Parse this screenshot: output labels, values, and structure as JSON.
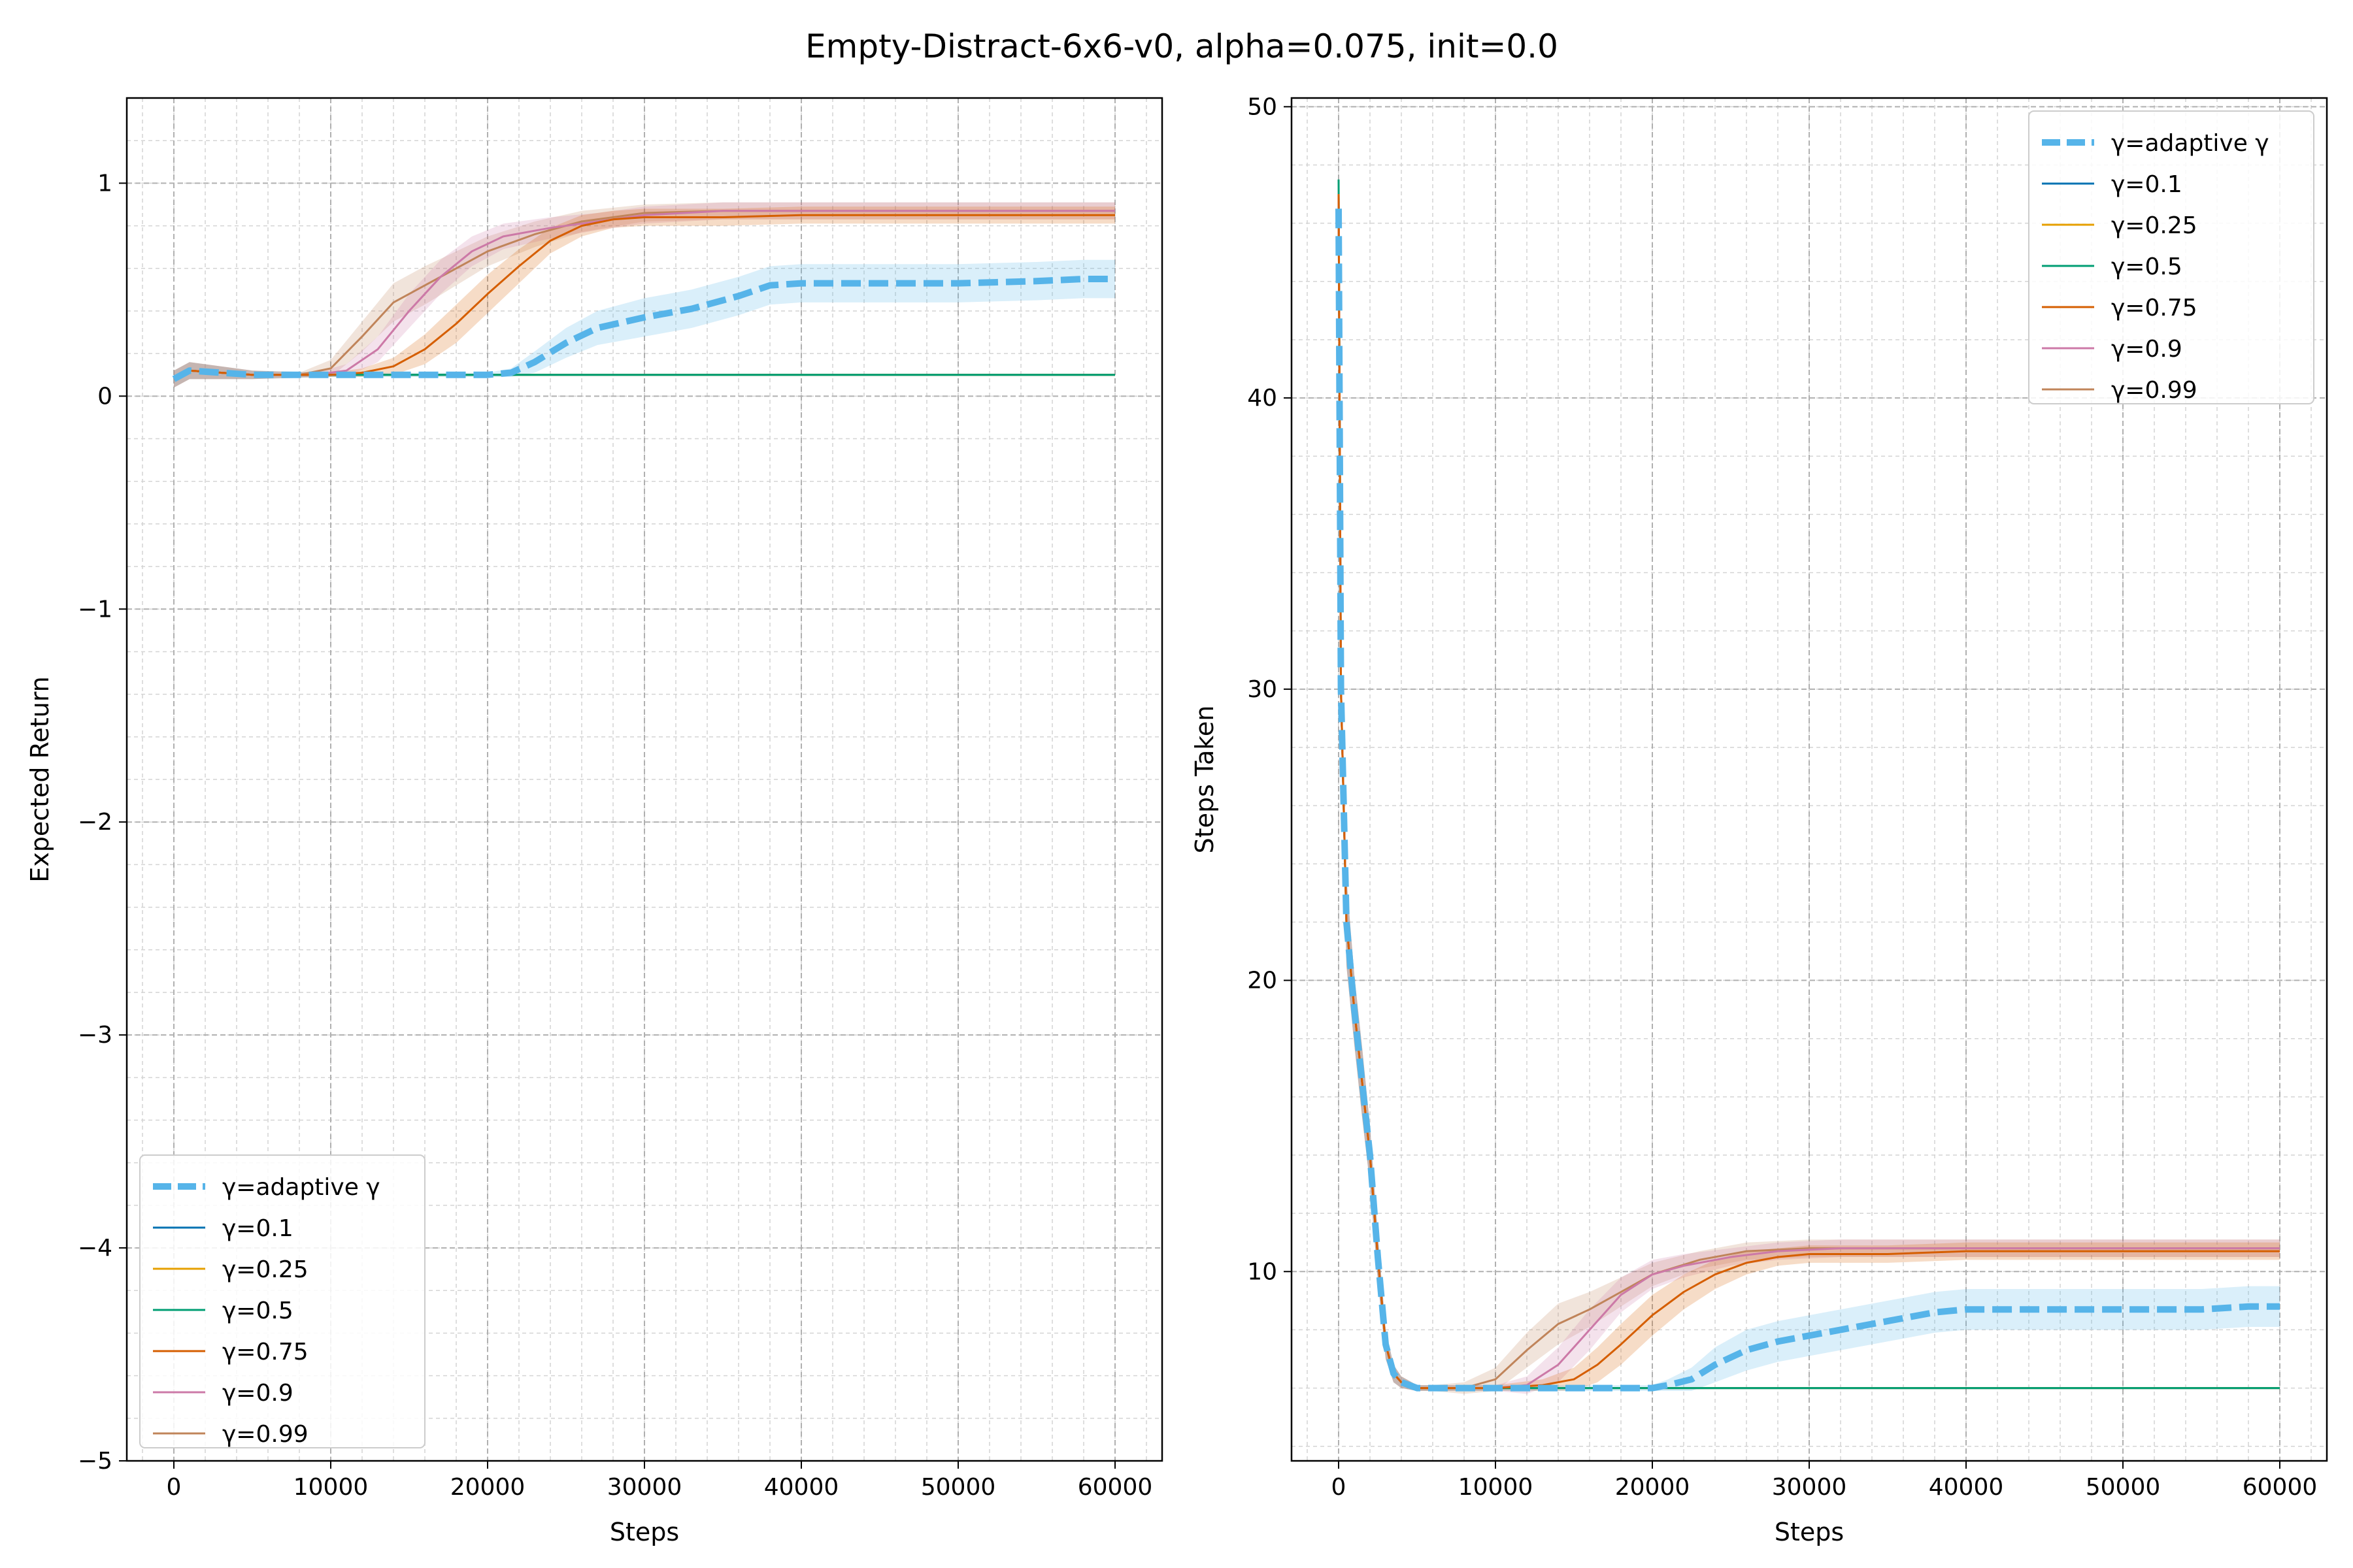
{
  "figure_title": "Empty-Distract-6x6-v0, alpha=0.075, init=0.0",
  "colors": {
    "adaptive": "#56b4e9",
    "g0.1": "#0072b2",
    "g0.25": "#e69f00",
    "g0.5": "#009e73",
    "g0.75": "#d55e00",
    "g0.9": "#cc79a7",
    "g0.99": "#c0845a"
  },
  "chart_data": [
    {
      "type": "line",
      "title": "",
      "xlabel": "Steps",
      "ylabel": "Expected Return",
      "xlim": [
        -3000,
        63000
      ],
      "ylim": [
        -5,
        1.4
      ],
      "xticks": [
        0,
        10000,
        20000,
        30000,
        40000,
        50000,
        60000
      ],
      "xtick_labels": [
        "0",
        "10000",
        "20000",
        "30000",
        "40000",
        "50000",
        "60000"
      ],
      "yticks": [
        -5,
        -4,
        -3,
        -2,
        -1,
        0,
        1
      ],
      "ytick_labels": [
        "−5",
        "−4",
        "−3",
        "−2",
        "−1",
        "0",
        "1"
      ],
      "grid": true,
      "legend_position": "lower left",
      "series": [
        {
          "name": "γ=adaptive γ",
          "key": "adaptive",
          "style": "dashed",
          "x": [
            0,
            1000,
            3000,
            5000,
            10000,
            15000,
            20000,
            21500,
            23000,
            25000,
            27000,
            30000,
            33000,
            36000,
            38000,
            40000,
            45000,
            50000,
            55000,
            58000,
            60000
          ],
          "y": [
            0.08,
            0.12,
            0.11,
            0.1,
            0.1,
            0.1,
            0.1,
            0.11,
            0.16,
            0.25,
            0.32,
            0.37,
            0.41,
            0.47,
            0.52,
            0.53,
            0.53,
            0.53,
            0.54,
            0.55,
            0.55
          ],
          "band": [
            0.04,
            0.04,
            0.03,
            0.02,
            0.01,
            0.01,
            0.01,
            0.02,
            0.05,
            0.07,
            0.08,
            0.09,
            0.09,
            0.09,
            0.09,
            0.09,
            0.09,
            0.09,
            0.09,
            0.09,
            0.09
          ]
        },
        {
          "name": "γ=0.1",
          "key": "g0.1",
          "style": "solid",
          "x": [
            0,
            1000,
            3000,
            5000,
            10000,
            20000,
            30000,
            40000,
            50000,
            60000
          ],
          "y": [
            0.08,
            0.12,
            0.11,
            0.1,
            0.1,
            0.1,
            0.1,
            0.1,
            0.1,
            0.1
          ]
        },
        {
          "name": "γ=0.25",
          "key": "g0.25",
          "style": "solid",
          "x": [
            0,
            1000,
            3000,
            5000,
            10000,
            20000,
            30000,
            40000,
            50000,
            60000
          ],
          "y": [
            0.08,
            0.12,
            0.11,
            0.1,
            0.1,
            0.1,
            0.1,
            0.1,
            0.1,
            0.1
          ]
        },
        {
          "name": "γ=0.5",
          "key": "g0.5",
          "style": "solid",
          "x": [
            0,
            1000,
            3000,
            5000,
            10000,
            20000,
            30000,
            40000,
            50000,
            60000
          ],
          "y": [
            0.08,
            0.12,
            0.11,
            0.1,
            0.1,
            0.1,
            0.1,
            0.1,
            0.1,
            0.1
          ]
        },
        {
          "name": "γ=0.75",
          "key": "g0.75",
          "style": "solid",
          "x": [
            0,
            1000,
            3000,
            5000,
            10000,
            12000,
            14000,
            16000,
            18000,
            20000,
            22000,
            24000,
            26000,
            28000,
            30000,
            35000,
            40000,
            50000,
            60000
          ],
          "y": [
            0.08,
            0.12,
            0.11,
            0.1,
            0.1,
            0.11,
            0.14,
            0.22,
            0.34,
            0.48,
            0.61,
            0.73,
            0.8,
            0.83,
            0.84,
            0.84,
            0.85,
            0.85,
            0.85
          ],
          "band": [
            0.04,
            0.04,
            0.03,
            0.02,
            0.01,
            0.02,
            0.04,
            0.07,
            0.09,
            0.09,
            0.08,
            0.06,
            0.05,
            0.04,
            0.04,
            0.04,
            0.04,
            0.04,
            0.04
          ]
        },
        {
          "name": "γ=0.9",
          "key": "g0.9",
          "style": "solid",
          "x": [
            0,
            1000,
            3000,
            5000,
            9000,
            11000,
            13000,
            15000,
            17000,
            19000,
            21000,
            24000,
            27000,
            30000,
            35000,
            40000,
            50000,
            60000
          ],
          "y": [
            0.08,
            0.12,
            0.11,
            0.1,
            0.1,
            0.12,
            0.22,
            0.4,
            0.56,
            0.68,
            0.75,
            0.79,
            0.82,
            0.85,
            0.87,
            0.87,
            0.87,
            0.87
          ],
          "band": [
            0.04,
            0.04,
            0.03,
            0.02,
            0.01,
            0.03,
            0.06,
            0.08,
            0.08,
            0.07,
            0.06,
            0.05,
            0.04,
            0.04,
            0.04,
            0.04,
            0.04,
            0.04
          ]
        },
        {
          "name": "γ=0.99",
          "key": "g0.99",
          "style": "solid",
          "x": [
            0,
            1000,
            3000,
            5000,
            8000,
            10000,
            12000,
            14000,
            16000,
            18000,
            20000,
            23000,
            26000,
            30000,
            35000,
            40000,
            50000,
            60000
          ],
          "y": [
            0.08,
            0.12,
            0.11,
            0.1,
            0.1,
            0.13,
            0.28,
            0.44,
            0.52,
            0.6,
            0.68,
            0.76,
            0.82,
            0.86,
            0.87,
            0.87,
            0.87,
            0.87
          ],
          "band": [
            0.04,
            0.04,
            0.03,
            0.02,
            0.01,
            0.04,
            0.07,
            0.09,
            0.09,
            0.08,
            0.07,
            0.06,
            0.05,
            0.04,
            0.04,
            0.04,
            0.04,
            0.04
          ]
        }
      ]
    },
    {
      "type": "line",
      "title": "",
      "xlabel": "Steps",
      "ylabel": "Steps Taken",
      "xlim": [
        -3000,
        63000
      ],
      "ylim": [
        3.5,
        50.3
      ],
      "xticks": [
        0,
        10000,
        20000,
        30000,
        40000,
        50000,
        60000
      ],
      "xtick_labels": [
        "0",
        "10000",
        "20000",
        "30000",
        "40000",
        "50000",
        "60000"
      ],
      "yticks": [
        10,
        20,
        30,
        40,
        50
      ],
      "ytick_labels": [
        "10",
        "20",
        "30",
        "40",
        "50"
      ],
      "grid": true,
      "legend_position": "upper right",
      "series": [
        {
          "name": "γ=adaptive γ",
          "key": "adaptive",
          "style": "dashed",
          "x": [
            0,
            150,
            500,
            1000,
            1500,
            2000,
            2500,
            3000,
            3500,
            4000,
            5000,
            6000,
            10000,
            15000,
            20000,
            21000,
            22500,
            24000,
            26000,
            28000,
            30000,
            32000,
            35000,
            38000,
            40000,
            45000,
            50000,
            55000,
            58000,
            60000
          ],
          "y": [
            46.5,
            30,
            22,
            19,
            16.5,
            14,
            10.5,
            7.5,
            6.5,
            6.2,
            6.0,
            6.0,
            6.0,
            6.0,
            6.0,
            6.1,
            6.3,
            6.8,
            7.3,
            7.6,
            7.8,
            8.0,
            8.3,
            8.6,
            8.7,
            8.7,
            8.7,
            8.7,
            8.8,
            8.8
          ],
          "band": [
            0.5,
            1.5,
            1.5,
            1.2,
            1.2,
            1.0,
            0.8,
            0.5,
            0.3,
            0.2,
            0.1,
            0.1,
            0.1,
            0.1,
            0.1,
            0.2,
            0.4,
            0.6,
            0.7,
            0.7,
            0.7,
            0.7,
            0.7,
            0.7,
            0.7,
            0.7,
            0.7,
            0.7,
            0.7,
            0.7
          ]
        },
        {
          "name": "γ=0.1",
          "key": "g0.1",
          "style": "solid",
          "x": [
            0,
            150,
            500,
            1000,
            1500,
            2000,
            2500,
            3000,
            3500,
            4000,
            5000,
            6000,
            10000,
            20000,
            30000,
            40000,
            50000,
            60000
          ],
          "y": [
            47,
            30,
            22,
            19,
            16.5,
            14,
            10.5,
            7.5,
            6.5,
            6.2,
            6.0,
            6.0,
            6.0,
            6.0,
            6.0,
            6.0,
            6.0,
            6.0
          ]
        },
        {
          "name": "γ=0.25",
          "key": "g0.25",
          "style": "solid",
          "x": [
            0,
            150,
            500,
            1000,
            1500,
            2000,
            2500,
            3000,
            3500,
            4000,
            5000,
            6000,
            10000,
            20000,
            30000,
            40000,
            50000,
            60000
          ],
          "y": [
            47,
            30,
            22,
            19,
            16.5,
            14,
            10.5,
            7.5,
            6.5,
            6.2,
            6.0,
            6.0,
            6.0,
            6.0,
            6.0,
            6.0,
            6.0,
            6.0
          ]
        },
        {
          "name": "γ=0.5",
          "key": "g0.5",
          "style": "solid",
          "x": [
            0,
            150,
            500,
            1000,
            1500,
            2000,
            2500,
            3000,
            3500,
            4000,
            5000,
            6000,
            10000,
            20000,
            30000,
            40000,
            50000,
            60000
          ],
          "y": [
            47.5,
            30,
            22,
            19,
            16.5,
            14,
            10.5,
            7.5,
            6.5,
            6.2,
            6.0,
            6.0,
            6.0,
            6.0,
            6.0,
            6.0,
            6.0,
            6.0
          ]
        },
        {
          "name": "γ=0.75",
          "key": "g0.75",
          "style": "solid",
          "x": [
            0,
            150,
            500,
            1000,
            1500,
            2000,
            2500,
            3000,
            3500,
            4000,
            5000,
            6000,
            10000,
            13000,
            15000,
            16500,
            18000,
            20000,
            22000,
            24000,
            26000,
            28000,
            30000,
            35000,
            40000,
            50000,
            60000
          ],
          "y": [
            47,
            30,
            22,
            19,
            16.5,
            14,
            10.5,
            7.5,
            6.5,
            6.2,
            6.0,
            6.0,
            6.0,
            6.1,
            6.3,
            6.8,
            7.5,
            8.5,
            9.3,
            9.9,
            10.3,
            10.5,
            10.6,
            10.6,
            10.7,
            10.7,
            10.7
          ],
          "band": [
            0.5,
            1.5,
            1.5,
            1.2,
            1.2,
            1.0,
            0.8,
            0.5,
            0.3,
            0.2,
            0.1,
            0.1,
            0.1,
            0.2,
            0.4,
            0.6,
            0.7,
            0.7,
            0.6,
            0.5,
            0.4,
            0.3,
            0.3,
            0.3,
            0.3,
            0.3,
            0.3
          ]
        },
        {
          "name": "γ=0.9",
          "key": "g0.9",
          "style": "solid",
          "x": [
            0,
            150,
            500,
            1000,
            1500,
            2000,
            2500,
            3000,
            3500,
            4000,
            5000,
            6000,
            10000,
            12000,
            14000,
            16000,
            18000,
            20000,
            22000,
            25000,
            28000,
            32000,
            40000,
            50000,
            60000
          ],
          "y": [
            47,
            30,
            22,
            19,
            16.5,
            14,
            10.5,
            7.5,
            6.5,
            6.2,
            6.0,
            6.0,
            6.0,
            6.1,
            6.8,
            8.0,
            9.2,
            9.9,
            10.2,
            10.5,
            10.7,
            10.8,
            10.8,
            10.8,
            10.8
          ],
          "band": [
            0.5,
            1.5,
            1.5,
            1.2,
            1.2,
            1.0,
            0.8,
            0.5,
            0.3,
            0.2,
            0.1,
            0.1,
            0.1,
            0.3,
            0.6,
            0.7,
            0.6,
            0.5,
            0.4,
            0.3,
            0.3,
            0.3,
            0.3,
            0.3,
            0.3
          ]
        },
        {
          "name": "γ=0.99",
          "key": "g0.99",
          "style": "solid",
          "x": [
            0,
            150,
            500,
            1000,
            1500,
            2000,
            2500,
            3000,
            3500,
            4000,
            5000,
            6000,
            8000,
            10000,
            12000,
            14000,
            16000,
            18000,
            20000,
            23000,
            26000,
            30000,
            40000,
            50000,
            60000
          ],
          "y": [
            47,
            30,
            22,
            19,
            16.5,
            14,
            10.5,
            7.5,
            6.5,
            6.2,
            6.0,
            6.0,
            6.0,
            6.3,
            7.3,
            8.2,
            8.7,
            9.3,
            9.9,
            10.4,
            10.7,
            10.8,
            10.8,
            10.8,
            10.8
          ],
          "band": [
            0.5,
            1.5,
            1.5,
            1.2,
            1.2,
            1.0,
            0.8,
            0.5,
            0.3,
            0.2,
            0.1,
            0.1,
            0.2,
            0.4,
            0.6,
            0.7,
            0.6,
            0.5,
            0.4,
            0.3,
            0.3,
            0.3,
            0.3,
            0.3,
            0.3
          ]
        }
      ]
    }
  ]
}
